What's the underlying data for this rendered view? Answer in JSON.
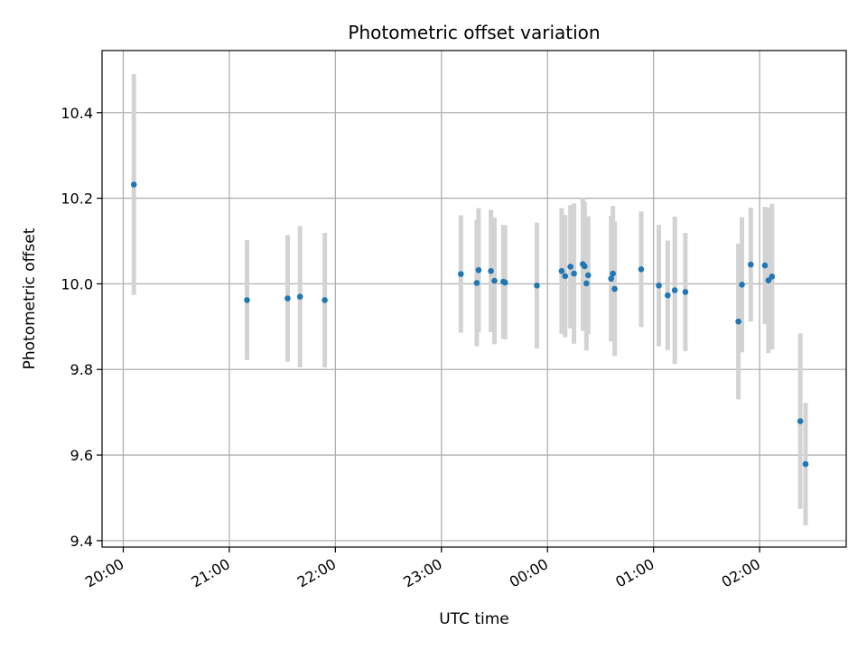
{
  "chart_data": {
    "type": "scatter",
    "title": "Photometric offset variation",
    "xlabel": "UTC time",
    "ylabel": "Photometric offset",
    "x_ticks": [
      "20:00",
      "21:00",
      "22:00",
      "23:00",
      "00:00",
      "01:00",
      "02:00"
    ],
    "y_ticks": [
      9.4,
      9.6,
      9.8,
      10.0,
      10.2,
      10.4
    ],
    "xlim": [
      "19:48",
      "26:49"
    ],
    "ylim": [
      9.385,
      10.545
    ],
    "grid": true,
    "point_color": "#1f77b4",
    "errorbar_color": "#d3d3d3",
    "points": [
      {
        "t": "20:06",
        "y": 10.232,
        "err": 0.258
      },
      {
        "t": "21:10",
        "y": 9.962,
        "err": 0.14
      },
      {
        "t": "21:33",
        "y": 9.966,
        "err": 0.148
      },
      {
        "t": "21:40",
        "y": 9.97,
        "err": 0.165
      },
      {
        "t": "21:54",
        "y": 9.962,
        "err": 0.157
      },
      {
        "t": "23:11",
        "y": 10.023,
        "err": 0.137
      },
      {
        "t": "23:20",
        "y": 10.002,
        "err": 0.148
      },
      {
        "t": "23:21",
        "y": 10.032,
        "err": 0.145
      },
      {
        "t": "23:28",
        "y": 10.03,
        "err": 0.143
      },
      {
        "t": "23:30",
        "y": 10.007,
        "err": 0.148
      },
      {
        "t": "23:35",
        "y": 10.005,
        "err": 0.133
      },
      {
        "t": "23:36",
        "y": 10.003,
        "err": 0.133
      },
      {
        "t": "23:54",
        "y": 9.996,
        "err": 0.147
      },
      {
        "t": "00:08",
        "y": 10.03,
        "err": 0.147
      },
      {
        "t": "00:10",
        "y": 10.018,
        "err": 0.143
      },
      {
        "t": "00:13",
        "y": 10.04,
        "err": 0.144
      },
      {
        "t": "00:15",
        "y": 10.024,
        "err": 0.164
      },
      {
        "t": "00:20",
        "y": 10.046,
        "err": 0.155
      },
      {
        "t": "00:21",
        "y": 10.041,
        "err": 0.151
      },
      {
        "t": "00:22",
        "y": 10.001,
        "err": 0.157
      },
      {
        "t": "00:23",
        "y": 10.02,
        "err": 0.138
      },
      {
        "t": "00:36",
        "y": 10.012,
        "err": 0.147
      },
      {
        "t": "00:37",
        "y": 10.024,
        "err": 0.158
      },
      {
        "t": "00:38",
        "y": 9.988,
        "err": 0.157
      },
      {
        "t": "00:53",
        "y": 10.034,
        "err": 0.135
      },
      {
        "t": "01:03",
        "y": 9.996,
        "err": 0.142
      },
      {
        "t": "01:08",
        "y": 9.973,
        "err": 0.128
      },
      {
        "t": "01:12",
        "y": 9.985,
        "err": 0.172
      },
      {
        "t": "01:18",
        "y": 9.981,
        "err": 0.138
      },
      {
        "t": "01:48",
        "y": 9.912,
        "err": 0.182
      },
      {
        "t": "01:50",
        "y": 9.998,
        "err": 0.158
      },
      {
        "t": "01:55",
        "y": 10.045,
        "err": 0.133
      },
      {
        "t": "02:03",
        "y": 10.043,
        "err": 0.137
      },
      {
        "t": "02:05",
        "y": 10.008,
        "err": 0.17
      },
      {
        "t": "02:07",
        "y": 10.017,
        "err": 0.17
      },
      {
        "t": "02:23",
        "y": 9.679,
        "err": 0.205
      },
      {
        "t": "02:26",
        "y": 9.579,
        "err": 0.143
      }
    ]
  }
}
